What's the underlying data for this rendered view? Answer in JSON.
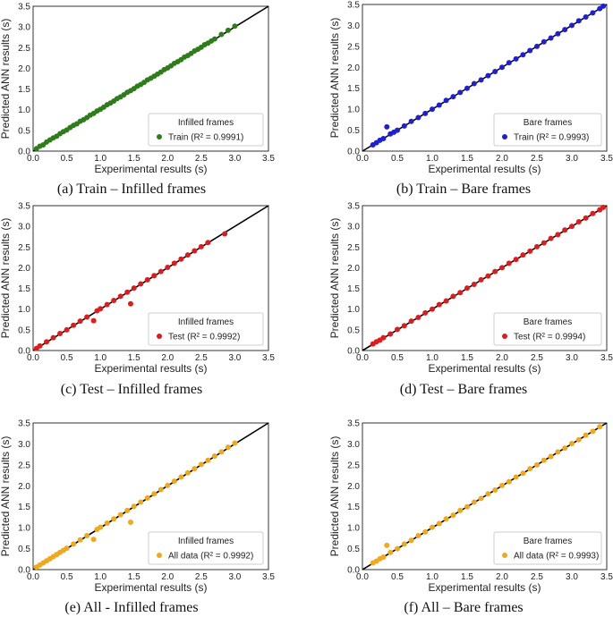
{
  "chart_data": [
    {
      "type": "scatter",
      "caption": "(a) Train – Infilled frames",
      "xlabel": "Experimental results (s)",
      "ylabel": "Predicted ANN results (s)",
      "xlim": [
        0,
        3.5
      ],
      "ylim": [
        0,
        3.5
      ],
      "ticks": [
        "0.0",
        "0.5",
        "1.0",
        "1.5",
        "2.0",
        "2.5",
        "3.0",
        "3.5"
      ],
      "legend_title": "Infilled frames",
      "legend_placement": "lower-right",
      "series": [
        {
          "name": "Train (R² = 0.9991)",
          "color": "#2e7d1a",
          "points": [
            [
              0.05,
              0.06
            ],
            [
              0.1,
              0.12
            ],
            [
              0.15,
              0.15
            ],
            [
              0.2,
              0.22
            ],
            [
              0.25,
              0.27
            ],
            [
              0.3,
              0.32
            ],
            [
              0.35,
              0.36
            ],
            [
              0.4,
              0.42
            ],
            [
              0.45,
              0.47
            ],
            [
              0.5,
              0.51
            ],
            [
              0.55,
              0.57
            ],
            [
              0.6,
              0.62
            ],
            [
              0.65,
              0.66
            ],
            [
              0.7,
              0.72
            ],
            [
              0.75,
              0.76
            ],
            [
              0.8,
              0.81
            ],
            [
              0.85,
              0.87
            ],
            [
              0.9,
              0.91
            ],
            [
              0.95,
              0.97
            ],
            [
              1.0,
              1.01
            ],
            [
              1.05,
              1.06
            ],
            [
              1.1,
              1.12
            ],
            [
              1.15,
              1.16
            ],
            [
              1.2,
              1.21
            ],
            [
              1.25,
              1.27
            ],
            [
              1.3,
              1.31
            ],
            [
              1.35,
              1.36
            ],
            [
              1.4,
              1.42
            ],
            [
              1.45,
              1.46
            ],
            [
              1.5,
              1.51
            ],
            [
              1.55,
              1.57
            ],
            [
              1.6,
              1.61
            ],
            [
              1.65,
              1.66
            ],
            [
              1.7,
              1.72
            ],
            [
              1.75,
              1.76
            ],
            [
              1.8,
              1.81
            ],
            [
              1.85,
              1.86
            ],
            [
              1.9,
              1.91
            ],
            [
              1.95,
              1.97
            ],
            [
              2.0,
              2.01
            ],
            [
              2.05,
              2.06
            ],
            [
              2.1,
              2.12
            ],
            [
              2.15,
              2.16
            ],
            [
              2.2,
              2.21
            ],
            [
              2.25,
              2.27
            ],
            [
              2.3,
              2.31
            ],
            [
              2.35,
              2.36
            ],
            [
              2.4,
              2.42
            ],
            [
              2.45,
              2.46
            ],
            [
              2.5,
              2.51
            ],
            [
              2.55,
              2.57
            ],
            [
              2.6,
              2.61
            ],
            [
              2.65,
              2.66
            ],
            [
              2.7,
              2.71
            ],
            [
              2.8,
              2.82
            ],
            [
              2.9,
              2.92
            ],
            [
              3.0,
              3.02
            ]
          ]
        }
      ]
    },
    {
      "type": "scatter",
      "caption": "(b) Train – Bare frames",
      "xlabel": "Experimental results (s)",
      "ylabel": "Predicted ANN results (s)",
      "xlim": [
        0,
        3.5
      ],
      "ylim": [
        0,
        3.5
      ],
      "ticks": [
        "0.0",
        "0.5",
        "1.0",
        "1.5",
        "2.0",
        "2.5",
        "3.0",
        "3.5"
      ],
      "legend_title": "Bare frames",
      "legend_placement": "lower-right",
      "series": [
        {
          "name": "Train (R² = 0.9993)",
          "color": "#1f1fd6",
          "points": [
            [
              0.15,
              0.15
            ],
            [
              0.2,
              0.2
            ],
            [
              0.25,
              0.26
            ],
            [
              0.3,
              0.3
            ],
            [
              0.35,
              0.58
            ],
            [
              0.4,
              0.41
            ],
            [
              0.45,
              0.45
            ],
            [
              0.5,
              0.5
            ],
            [
              0.6,
              0.6
            ],
            [
              0.7,
              0.71
            ],
            [
              0.8,
              0.8
            ],
            [
              0.9,
              0.9
            ],
            [
              1.0,
              1.0
            ],
            [
              1.1,
              1.1
            ],
            [
              1.2,
              1.21
            ],
            [
              1.3,
              1.3
            ],
            [
              1.4,
              1.4
            ],
            [
              1.5,
              1.5
            ],
            [
              1.6,
              1.61
            ],
            [
              1.7,
              1.7
            ],
            [
              1.8,
              1.8
            ],
            [
              1.9,
              1.9
            ],
            [
              2.0,
              2.0
            ],
            [
              2.1,
              2.11
            ],
            [
              2.2,
              2.2
            ],
            [
              2.3,
              2.3
            ],
            [
              2.4,
              2.4
            ],
            [
              2.5,
              2.5
            ],
            [
              2.6,
              2.61
            ],
            [
              2.7,
              2.7
            ],
            [
              2.8,
              2.8
            ],
            [
              2.9,
              2.9
            ],
            [
              3.0,
              3.0
            ],
            [
              3.1,
              3.11
            ],
            [
              3.2,
              3.2
            ],
            [
              3.3,
              3.3
            ],
            [
              3.4,
              3.4
            ],
            [
              3.45,
              3.46
            ]
          ]
        }
      ]
    },
    {
      "type": "scatter",
      "caption": "(c) Test – Infilled frames",
      "xlabel": "Experimental results (s)",
      "ylabel": "Predicted ANN results (s)",
      "xlim": [
        0,
        3.5
      ],
      "ylim": [
        0,
        3.5
      ],
      "ticks": [
        "0.0",
        "0.5",
        "1.0",
        "1.5",
        "2.0",
        "2.5",
        "3.0",
        "3.5"
      ],
      "legend_title": "Infilled frames",
      "legend_placement": "lower-right",
      "series": [
        {
          "name": "Test (R² = 0.9992)",
          "color": "#e01b1b",
          "points": [
            [
              0.05,
              0.05
            ],
            [
              0.1,
              0.11
            ],
            [
              0.2,
              0.21
            ],
            [
              0.3,
              0.31
            ],
            [
              0.4,
              0.41
            ],
            [
              0.5,
              0.5
            ],
            [
              0.6,
              0.61
            ],
            [
              0.7,
              0.71
            ],
            [
              0.8,
              0.81
            ],
            [
              0.9,
              0.72
            ],
            [
              0.95,
              0.96
            ],
            [
              1.0,
              1.01
            ],
            [
              1.1,
              1.11
            ],
            [
              1.2,
              1.21
            ],
            [
              1.3,
              1.31
            ],
            [
              1.4,
              1.41
            ],
            [
              1.45,
              1.13
            ],
            [
              1.5,
              1.51
            ],
            [
              1.6,
              1.61
            ],
            [
              1.7,
              1.71
            ],
            [
              1.8,
              1.81
            ],
            [
              1.9,
              1.91
            ],
            [
              2.0,
              2.01
            ],
            [
              2.1,
              2.11
            ],
            [
              2.2,
              2.21
            ],
            [
              2.3,
              2.31
            ],
            [
              2.4,
              2.41
            ],
            [
              2.5,
              2.51
            ],
            [
              2.6,
              2.61
            ],
            [
              2.85,
              2.82
            ]
          ]
        }
      ]
    },
    {
      "type": "scatter",
      "caption": "(d) Test – Bare frames",
      "xlabel": "Experimental results (s)",
      "ylabel": "Predicted ANN results (s)",
      "xlim": [
        0,
        3.5
      ],
      "ylim": [
        0,
        3.5
      ],
      "ticks": [
        "0.0",
        "0.5",
        "1.0",
        "1.5",
        "2.0",
        "2.5",
        "3.0",
        "3.5"
      ],
      "legend_title": "Bare frames",
      "legend_placement": "lower-right",
      "series": [
        {
          "name": "Test (R² = 0.9994)",
          "color": "#e01b1b",
          "points": [
            [
              0.15,
              0.16
            ],
            [
              0.2,
              0.21
            ],
            [
              0.25,
              0.25
            ],
            [
              0.3,
              0.31
            ],
            [
              0.4,
              0.4
            ],
            [
              0.5,
              0.51
            ],
            [
              0.6,
              0.6
            ],
            [
              0.7,
              0.71
            ],
            [
              0.8,
              0.8
            ],
            [
              0.9,
              0.91
            ],
            [
              1.0,
              1.0
            ],
            [
              1.1,
              1.11
            ],
            [
              1.2,
              1.2
            ],
            [
              1.3,
              1.31
            ],
            [
              1.4,
              1.4
            ],
            [
              1.5,
              1.51
            ],
            [
              1.6,
              1.6
            ],
            [
              1.7,
              1.71
            ],
            [
              1.8,
              1.8
            ],
            [
              1.9,
              1.91
            ],
            [
              2.0,
              2.0
            ],
            [
              2.1,
              2.11
            ],
            [
              2.2,
              2.2
            ],
            [
              2.3,
              2.31
            ],
            [
              2.4,
              2.4
            ],
            [
              2.5,
              2.51
            ],
            [
              2.6,
              2.6
            ],
            [
              2.7,
              2.71
            ],
            [
              2.8,
              2.8
            ],
            [
              2.9,
              2.91
            ],
            [
              3.0,
              3.0
            ],
            [
              3.1,
              3.11
            ],
            [
              3.2,
              3.2
            ],
            [
              3.3,
              3.31
            ],
            [
              3.4,
              3.4
            ],
            [
              3.45,
              3.46
            ]
          ]
        }
      ]
    },
    {
      "type": "scatter",
      "caption": "(e) All - Infilled frames",
      "xlabel": "Experimental results (s)",
      "ylabel": "Predicted ANN results (s)",
      "xlim": [
        0,
        3.5
      ],
      "ylim": [
        0,
        3.5
      ],
      "ticks": [
        "0.0",
        "0.5",
        "1.0",
        "1.5",
        "2.0",
        "2.5",
        "3.0",
        "3.5"
      ],
      "legend_title": "Infilled frames",
      "legend_placement": "lower-right",
      "series": [
        {
          "name": "All data (R² = 0.9992)",
          "color": "#f0a81c",
          "points": [
            [
              0.05,
              0.06
            ],
            [
              0.1,
              0.11
            ],
            [
              0.15,
              0.16
            ],
            [
              0.2,
              0.21
            ],
            [
              0.25,
              0.26
            ],
            [
              0.3,
              0.31
            ],
            [
              0.35,
              0.36
            ],
            [
              0.4,
              0.41
            ],
            [
              0.45,
              0.46
            ],
            [
              0.5,
              0.51
            ],
            [
              0.6,
              0.61
            ],
            [
              0.7,
              0.71
            ],
            [
              0.8,
              0.81
            ],
            [
              0.9,
              0.72
            ],
            [
              0.95,
              0.96
            ],
            [
              1.0,
              1.01
            ],
            [
              1.1,
              1.11
            ],
            [
              1.2,
              1.21
            ],
            [
              1.3,
              1.31
            ],
            [
              1.4,
              1.41
            ],
            [
              1.45,
              1.13
            ],
            [
              1.5,
              1.51
            ],
            [
              1.6,
              1.61
            ],
            [
              1.7,
              1.71
            ],
            [
              1.8,
              1.81
            ],
            [
              1.9,
              1.91
            ],
            [
              2.0,
              2.01
            ],
            [
              2.1,
              2.11
            ],
            [
              2.2,
              2.21
            ],
            [
              2.3,
              2.31
            ],
            [
              2.4,
              2.41
            ],
            [
              2.5,
              2.51
            ],
            [
              2.6,
              2.61
            ],
            [
              2.7,
              2.71
            ],
            [
              2.8,
              2.81
            ],
            [
              2.9,
              2.92
            ],
            [
              3.0,
              3.02
            ]
          ]
        }
      ]
    },
    {
      "type": "scatter",
      "caption": "(f) All – Bare frames",
      "xlabel": "Experimental results (s)",
      "ylabel": "Predicted ANN results (s)",
      "xlim": [
        0,
        3.5
      ],
      "ylim": [
        0,
        3.5
      ],
      "ticks": [
        "0.0",
        "0.5",
        "1.0",
        "1.5",
        "2.0",
        "2.5",
        "3.0",
        "3.5"
      ],
      "legend_title": "Bare frames",
      "legend_placement": "lower-right",
      "series": [
        {
          "name": "All data (R² = 0.9993)",
          "color": "#f0a81c",
          "points": [
            [
              0.15,
              0.16
            ],
            [
              0.2,
              0.2
            ],
            [
              0.25,
              0.26
            ],
            [
              0.3,
              0.3
            ],
            [
              0.35,
              0.58
            ],
            [
              0.4,
              0.41
            ],
            [
              0.5,
              0.5
            ],
            [
              0.6,
              0.61
            ],
            [
              0.7,
              0.7
            ],
            [
              0.8,
              0.81
            ],
            [
              0.9,
              0.9
            ],
            [
              1.0,
              1.01
            ],
            [
              1.1,
              1.1
            ],
            [
              1.2,
              1.21
            ],
            [
              1.3,
              1.3
            ],
            [
              1.4,
              1.41
            ],
            [
              1.5,
              1.5
            ],
            [
              1.6,
              1.61
            ],
            [
              1.7,
              1.7
            ],
            [
              1.8,
              1.81
            ],
            [
              1.9,
              1.9
            ],
            [
              2.0,
              2.01
            ],
            [
              2.1,
              2.1
            ],
            [
              2.2,
              2.21
            ],
            [
              2.3,
              2.3
            ],
            [
              2.4,
              2.41
            ],
            [
              2.5,
              2.5
            ],
            [
              2.6,
              2.61
            ],
            [
              2.7,
              2.7
            ],
            [
              2.8,
              2.81
            ],
            [
              2.9,
              2.9
            ],
            [
              3.0,
              3.01
            ],
            [
              3.1,
              3.1
            ],
            [
              3.2,
              3.21
            ],
            [
              3.3,
              3.3
            ],
            [
              3.4,
              3.41
            ]
          ]
        }
      ]
    }
  ]
}
